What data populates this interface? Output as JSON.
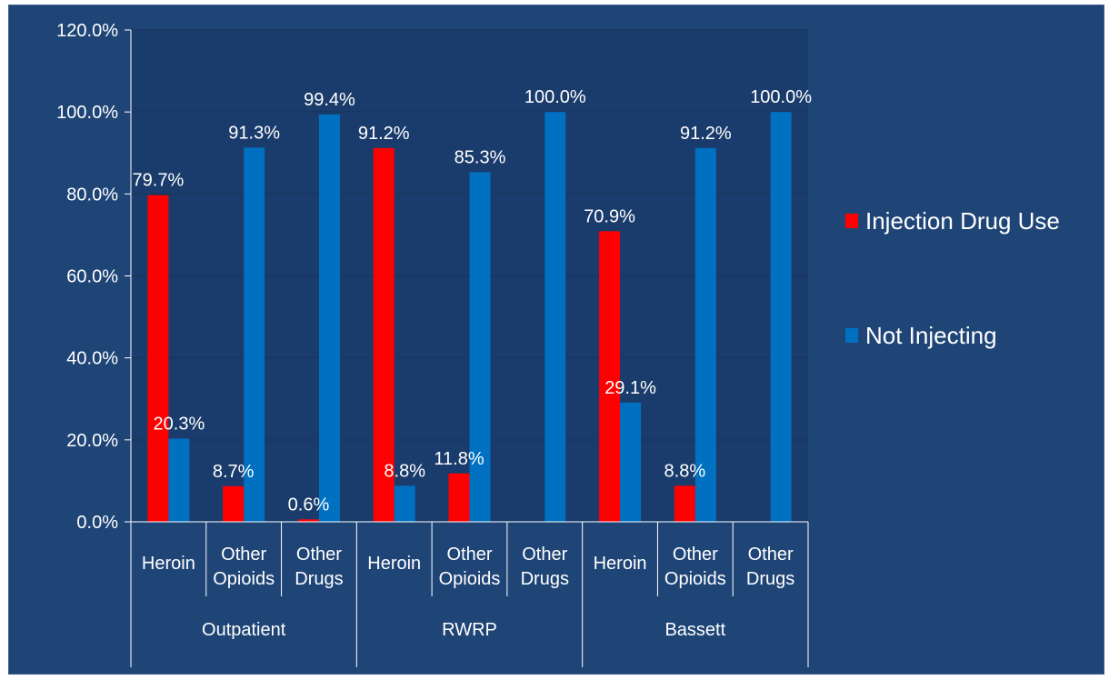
{
  "chart_data": {
    "type": "bar",
    "title": "",
    "xlabel": "",
    "ylabel": "",
    "ylim": [
      0,
      120
    ],
    "y_ticks": [
      0,
      20,
      40,
      60,
      80,
      100,
      120
    ],
    "y_tick_labels": [
      "0.0%",
      "20.0%",
      "40.0%",
      "60.0%",
      "80.0%",
      "100.0%",
      "120.0%"
    ],
    "grid": true,
    "legend_position": "right",
    "categories": [
      "Heroin",
      "Other Opioids",
      "Other Drugs",
      "Heroin",
      "Other Opioids",
      "Other Drugs",
      "Heroin",
      "Other Opioids",
      "Other Drugs"
    ],
    "category_lines": [
      [
        "Heroin"
      ],
      [
        "Other",
        "Opioids"
      ],
      [
        "Other",
        "Drugs"
      ],
      [
        "Heroin"
      ],
      [
        "Other",
        "Opioids"
      ],
      [
        "Other",
        "Drugs"
      ],
      [
        "Heroin"
      ],
      [
        "Other",
        "Opioids"
      ],
      [
        "Other",
        "Drugs"
      ]
    ],
    "groups": [
      {
        "label": "Outpatient",
        "count": 3
      },
      {
        "label": "RWRP",
        "count": 3
      },
      {
        "label": "Bassett",
        "count": 3
      }
    ],
    "series": [
      {
        "name": "Injection Drug Use",
        "color": "#ff0000",
        "values": [
          79.7,
          8.7,
          0.6,
          91.2,
          11.8,
          0.0,
          70.9,
          8.8,
          0.0
        ],
        "labels": [
          "79.7%",
          "8.7%",
          "0.6%",
          "91.2%",
          "11.8%",
          "",
          "70.9%",
          "8.8%",
          ""
        ]
      },
      {
        "name": "Not Injecting",
        "color": "#0070c0",
        "values": [
          20.3,
          91.3,
          99.4,
          8.8,
          85.3,
          100.0,
          29.1,
          91.2,
          100.0
        ],
        "labels": [
          "20.3%",
          "91.3%",
          "99.4%",
          "8.8%",
          "85.3%",
          "100.0%",
          "29.1%",
          "91.2%",
          "100.0%"
        ]
      }
    ],
    "colors": {
      "background": "#1f4577",
      "plot_area": "#1a3c6c",
      "grid": "#16375f",
      "axis": "#ffffff",
      "text": "#ffffff"
    }
  }
}
